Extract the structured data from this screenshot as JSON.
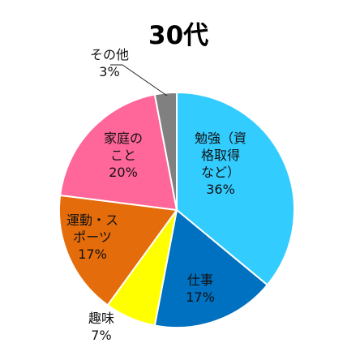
{
  "chart_data": {
    "type": "pie",
    "title": "30代",
    "start_angle_deg": 0,
    "direction": "clockwise",
    "slices": [
      {
        "label": "勉強（資格取得など）",
        "label_lines": [
          "勉強（資",
          "格取得",
          "など）"
        ],
        "value": 36,
        "value_text": "36%",
        "color": "#33ccff",
        "label_color": "#111111"
      },
      {
        "label": "仕事",
        "label_lines": [
          "仕事"
        ],
        "value": 17,
        "value_text": "17%",
        "color": "#0070c0",
        "label_color": "#111111"
      },
      {
        "label": "趣味",
        "label_lines": [
          "趣味"
        ],
        "value": 7,
        "value_text": "7%",
        "color": "#ffff00",
        "label_color": "#111111"
      },
      {
        "label": "運動・スポーツ",
        "label_lines": [
          "運動・ス",
          "ポーツ"
        ],
        "value": 17,
        "value_text": "17%",
        "color": "#e46c0a",
        "label_color": "#111111"
      },
      {
        "label": "家庭のこと",
        "label_lines": [
          "家庭の",
          "こと"
        ],
        "value": 20,
        "value_text": "20%",
        "color": "#ff6699",
        "label_color": "#111111"
      },
      {
        "label": "その他",
        "label_lines": [
          "その他"
        ],
        "value": 3,
        "value_text": "3%",
        "color": "#808080",
        "label_color": "#111111"
      }
    ]
  }
}
